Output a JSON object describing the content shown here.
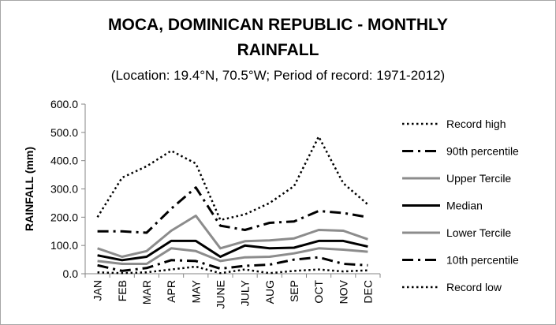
{
  "chart_data": {
    "type": "line",
    "title_line1": "MOCA, DOMINICAN REPUBLIC - MONTHLY",
    "title_line2": "RAINFALL",
    "subtitle": "(Location: 19.4°N, 70.5°W; Period of record: 1971-2012)",
    "ylabel": "RAINFALL (mm)",
    "xlabel": "",
    "ylim": [
      0,
      600
    ],
    "yticks": [
      "0.0",
      "100.0",
      "200.0",
      "300.0",
      "400.0",
      "500.0",
      "600.0"
    ],
    "categories": [
      "JAN",
      "FEB",
      "MAR",
      "APR",
      "MAY",
      "JUNE",
      "JULY",
      "AUG",
      "SEP",
      "OCT",
      "NOV",
      "DEC"
    ],
    "legend_position": "right",
    "grid": false,
    "series": [
      {
        "name": "Record high",
        "style": "dotted",
        "color": "#000000",
        "values": [
          200,
          340,
          380,
          435,
          390,
          190,
          210,
          250,
          310,
          485,
          320,
          245
        ]
      },
      {
        "name": "90th percentile",
        "style": "dashdot",
        "color": "#000000",
        "values": [
          150,
          150,
          145,
          230,
          305,
          170,
          155,
          180,
          185,
          222,
          215,
          200
        ]
      },
      {
        "name": "Upper Tercile",
        "style": "solid",
        "color": "#8c8c8c",
        "values": [
          90,
          60,
          80,
          152,
          205,
          90,
          115,
          118,
          125,
          155,
          152,
          122
        ]
      },
      {
        "name": "Median",
        "style": "solid",
        "color": "#000000",
        "values": [
          65,
          48,
          60,
          116,
          116,
          60,
          100,
          90,
          92,
          116,
          116,
          96
        ]
      },
      {
        "name": "Lower Tercile",
        "style": "solid",
        "color": "#8c8c8c",
        "values": [
          45,
          35,
          35,
          90,
          80,
          45,
          58,
          60,
          72,
          90,
          85,
          78
        ]
      },
      {
        "name": "10th percentile",
        "style": "dashdot",
        "color": "#000000",
        "values": [
          30,
          10,
          20,
          48,
          45,
          18,
          28,
          32,
          50,
          58,
          35,
          30
        ]
      },
      {
        "name": "Record low",
        "style": "dotted",
        "color": "#000000",
        "values": [
          5,
          2,
          5,
          15,
          25,
          2,
          15,
          2,
          10,
          15,
          8,
          12
        ]
      }
    ]
  }
}
